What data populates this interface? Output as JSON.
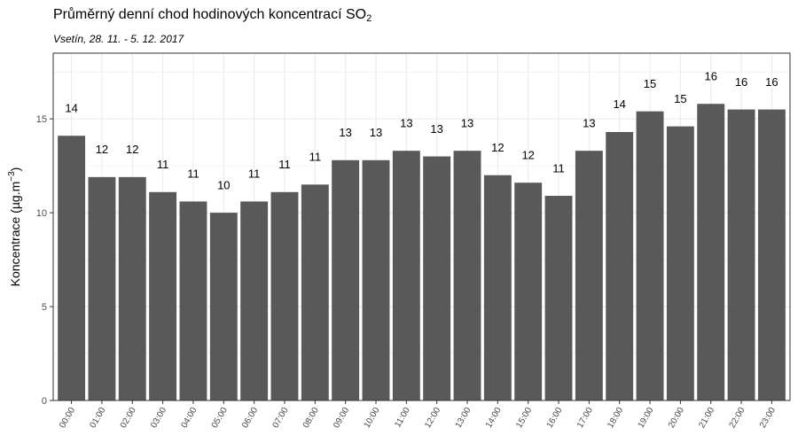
{
  "chart_data": {
    "type": "bar",
    "title": "Průměrný denní chod hodinových koncentrací SO",
    "title_subscript": "2",
    "subtitle": "Vsetín, 28. 11. - 5. 12. 2017",
    "xlabel": "",
    "ylabel": "Koncentrace  (µg.m",
    "ylabel_superscript": "−3",
    "ylabel_close": ")",
    "categories": [
      "00:00",
      "01:00",
      "02:00",
      "03:00",
      "04:00",
      "05:00",
      "06:00",
      "07:00",
      "08:00",
      "09:00",
      "10:00",
      "11:00",
      "12:00",
      "13:00",
      "14:00",
      "15:00",
      "16:00",
      "17:00",
      "18:00",
      "19:00",
      "20:00",
      "21:00",
      "22:00",
      "23:00"
    ],
    "values": [
      14.1,
      11.9,
      11.9,
      11.1,
      10.6,
      10.0,
      10.6,
      11.1,
      11.5,
      12.8,
      12.8,
      13.3,
      13.0,
      13.3,
      12.0,
      11.6,
      10.9,
      13.3,
      14.3,
      15.4,
      14.6,
      15.8,
      15.5,
      15.5
    ],
    "data_labels": [
      "14",
      "12",
      "12",
      "11",
      "11",
      "10",
      "11",
      "11",
      "11",
      "13",
      "13",
      "13",
      "13",
      "13",
      "12",
      "12",
      "11",
      "13",
      "14",
      "15",
      "15",
      "16",
      "16",
      "16"
    ],
    "ylim": [
      0,
      18.5
    ],
    "yticks": [
      0,
      5,
      10,
      15
    ],
    "ytick_labels": [
      "0",
      "5",
      "10",
      "15"
    ],
    "grid": true,
    "bar_color": "#595959",
    "panel_border_color": "#333333",
    "grid_color": "#ebebeb"
  }
}
